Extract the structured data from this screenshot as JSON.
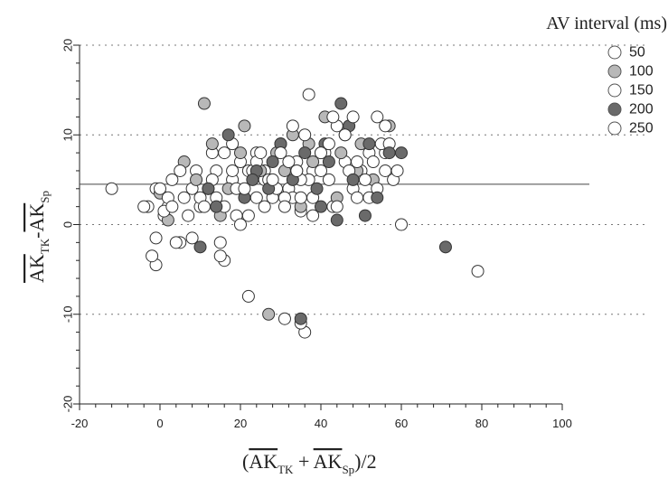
{
  "chart_data": {
    "type": "scatter",
    "xlabel": {
      "pre": "(",
      "a": "AK",
      "a_sub": "TK",
      "mid": " + ",
      "b": "AK",
      "b_sub": "Sp",
      "post": ")/2"
    },
    "ylabel": {
      "a": "AK",
      "a_sub": "TK",
      "mid": "-",
      "b": "AK",
      "b_sub": "Sp"
    },
    "xlim": [
      -20,
      100
    ],
    "ylim": [
      -20,
      20
    ],
    "xticks": [
      -20,
      0,
      20,
      40,
      60,
      80,
      100
    ],
    "yticks": [
      -20,
      -10,
      0,
      10,
      20
    ],
    "mean_line": 4.5,
    "reference_lines": [
      -10,
      0,
      10,
      20
    ],
    "legend": {
      "title": "AV interval (ms)",
      "placement": "top-right",
      "entries": [
        {
          "label": "50",
          "color": "#ffffff"
        },
        {
          "label": "100",
          "color": "#b8b8b8"
        },
        {
          "label": "150",
          "color": "#ffffff"
        },
        {
          "label": "200",
          "color": "#6a6a6a"
        },
        {
          "label": "250",
          "color": "#ffffff"
        }
      ]
    },
    "series": [
      {
        "color": "#ffffff",
        "x": [
          -12,
          -3,
          -1,
          -1,
          1,
          2,
          3,
          6,
          8,
          9,
          12,
          14,
          16,
          18,
          20,
          22,
          24,
          26,
          28,
          30,
          32,
          34,
          36,
          38,
          40,
          42,
          44,
          46,
          48,
          50,
          52,
          54,
          56,
          58,
          60,
          79,
          35,
          33,
          22,
          15,
          10,
          5,
          26,
          31,
          37,
          43,
          49,
          55,
          19,
          13
        ],
        "y": [
          4,
          2,
          4,
          -4.5,
          1,
          2,
          5,
          3,
          4,
          6,
          4,
          6,
          -4,
          5,
          7,
          6,
          8,
          5,
          3,
          9,
          4,
          7,
          -12,
          6,
          8,
          5,
          11,
          7,
          4,
          6,
          3,
          12,
          8,
          5,
          0,
          -5.2,
          1.5,
          3,
          -8,
          -2,
          2,
          -2,
          6,
          3,
          5,
          2,
          3,
          9,
          1,
          8
        ]
      },
      {
        "color": "#b8b8b8",
        "x": [
          11,
          6,
          9,
          13,
          17,
          21,
          25,
          29,
          33,
          37,
          41,
          45,
          49,
          53,
          57,
          0,
          2,
          27,
          38,
          44,
          20,
          31,
          50,
          35,
          15
        ],
        "y": [
          13.5,
          7,
          5,
          9,
          4,
          11,
          6,
          8,
          10,
          9,
          12,
          8,
          6,
          5,
          11,
          3.5,
          0.5,
          -10,
          7,
          3,
          8,
          6,
          9,
          2,
          1
        ]
      },
      {
        "color": "#ffffff",
        "x": [
          -2,
          -1,
          1,
          2,
          4,
          7,
          10,
          13,
          16,
          19,
          23,
          26,
          29,
          32,
          35,
          38,
          41,
          44,
          47,
          51,
          54,
          57,
          35,
          31,
          27,
          24,
          18,
          14,
          40,
          46,
          52,
          56,
          22,
          33
        ],
        "y": [
          -3.5,
          -1.5,
          1.5,
          3,
          -2,
          1,
          3,
          5,
          2,
          4,
          6,
          2,
          4,
          7,
          5,
          3,
          8,
          2,
          6,
          5,
          4,
          9,
          -11,
          -10.5,
          5,
          7,
          9,
          3,
          6,
          10,
          8,
          6,
          1,
          11
        ]
      },
      {
        "color": "#6a6a6a",
        "x": [
          10,
          14,
          17,
          21,
          24,
          27,
          30,
          33,
          36,
          39,
          42,
          45,
          48,
          51,
          54,
          57,
          60,
          71,
          35,
          44,
          52,
          12,
          28,
          40,
          47,
          23,
          34,
          41
        ],
        "y": [
          -2.5,
          2,
          10,
          3,
          6,
          4,
          9,
          5,
          8,
          4,
          7,
          13.5,
          5,
          1,
          3,
          8,
          8,
          -2.5,
          -10.5,
          0.5,
          9,
          4,
          7,
          2,
          11,
          5,
          6,
          9
        ]
      },
      {
        "color": "#ffffff",
        "x": [
          -4,
          0,
          3,
          5,
          8,
          11,
          15,
          18,
          21,
          25,
          28,
          31,
          34,
          37,
          40,
          43,
          46,
          49,
          53,
          56,
          59,
          35,
          24,
          30,
          38,
          42,
          48,
          16,
          20,
          36
        ],
        "y": [
          2,
          4,
          2,
          6,
          -1.5,
          2,
          -3.5,
          6,
          4,
          8,
          5,
          2,
          6,
          14.5,
          8,
          12,
          10,
          7,
          7,
          11,
          6,
          3,
          3,
          8,
          1,
          9,
          12,
          8,
          0,
          10
        ]
      }
    ]
  }
}
